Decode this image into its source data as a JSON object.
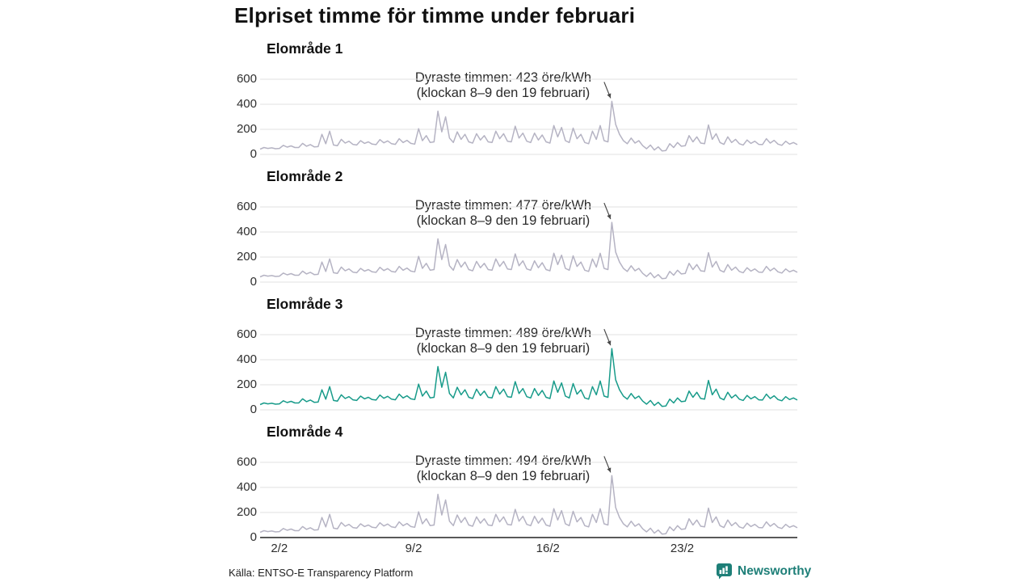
{
  "title": "Elpriset timme för timme under februari",
  "footer": {
    "source": "Källa: ENTSO-E Transparency Platform"
  },
  "logo": {
    "text": "Newsworthy",
    "color": "#1e7f78",
    "icon": "bar-chart-speech-bubble"
  },
  "colors": {
    "series_default": "#b5b3c3",
    "series_highlight": "#189b8a",
    "grid": "#e0e0e0",
    "axis": "#222222",
    "arrow": "#4a4a4a"
  },
  "axis": {
    "yticks": [
      600,
      400,
      200,
      0
    ],
    "xticks": [
      "2/2",
      "9/2",
      "16/2",
      "23/2"
    ],
    "xtick_days": [
      2,
      9,
      16,
      23
    ],
    "ylim": [
      0,
      700
    ],
    "x_domain": "1–28 februari, 5 samples per day"
  },
  "chart_data": [
    {
      "type": "line",
      "title": "Elområde 1",
      "unit": "öre/kWh",
      "line_color": "#b5b3c3",
      "annotation": {
        "line1": "Dyraste timmen: 423 öre/kWh",
        "line2": "(klockan 8–9 den 19 februari)",
        "max": 423
      },
      "values": [
        42,
        55,
        48,
        52,
        45,
        48,
        72,
        58,
        68,
        55,
        55,
        88,
        65,
        78,
        60,
        62,
        160,
        85,
        185,
        75,
        70,
        120,
        90,
        105,
        80,
        75,
        110,
        88,
        100,
        82,
        78,
        118,
        92,
        108,
        85,
        80,
        125,
        95,
        112,
        88,
        82,
        205,
        110,
        150,
        95,
        100,
        345,
        180,
        300,
        130,
        95,
        180,
        120,
        160,
        100,
        90,
        165,
        115,
        150,
        100,
        95,
        185,
        125,
        165,
        105,
        100,
        225,
        130,
        170,
        105,
        95,
        170,
        115,
        155,
        100,
        90,
        230,
        140,
        215,
        110,
        95,
        210,
        125,
        160,
        95,
        85,
        185,
        120,
        230,
        110,
        100,
        423,
        240,
        160,
        110,
        85,
        130,
        90,
        110,
        70,
        45,
        75,
        35,
        60,
        28,
        30,
        85,
        55,
        95,
        65,
        70,
        150,
        100,
        140,
        90,
        85,
        235,
        120,
        165,
        95,
        80,
        140,
        95,
        120,
        85,
        75,
        115,
        88,
        105,
        80,
        78,
        125,
        90,
        112,
        82,
        72,
        105,
        82,
        95,
        78
      ]
    },
    {
      "type": "line",
      "title": "Elområde 2",
      "unit": "öre/kWh",
      "line_color": "#b5b3c3",
      "annotation": {
        "line1": "Dyraste timmen: 477 öre/kWh",
        "line2": "(klockan 8–9 den 19 februari)",
        "max": 477
      },
      "values": [
        42,
        55,
        48,
        52,
        45,
        48,
        72,
        58,
        68,
        55,
        55,
        88,
        65,
        78,
        60,
        62,
        160,
        85,
        185,
        75,
        70,
        120,
        90,
        105,
        80,
        75,
        110,
        88,
        100,
        82,
        78,
        118,
        92,
        108,
        85,
        80,
        125,
        95,
        112,
        88,
        82,
        205,
        110,
        150,
        95,
        100,
        345,
        180,
        300,
        130,
        95,
        180,
        120,
        160,
        100,
        90,
        165,
        115,
        150,
        100,
        95,
        185,
        125,
        165,
        105,
        100,
        225,
        130,
        170,
        105,
        95,
        170,
        115,
        155,
        100,
        90,
        230,
        140,
        215,
        110,
        95,
        210,
        125,
        160,
        95,
        85,
        185,
        120,
        230,
        110,
        100,
        477,
        240,
        160,
        110,
        85,
        130,
        90,
        110,
        70,
        45,
        75,
        35,
        60,
        28,
        30,
        85,
        55,
        95,
        65,
        70,
        150,
        100,
        140,
        90,
        85,
        235,
        120,
        165,
        95,
        80,
        140,
        95,
        120,
        85,
        75,
        115,
        88,
        105,
        80,
        78,
        125,
        90,
        112,
        82,
        72,
        105,
        82,
        95,
        78
      ]
    },
    {
      "type": "line",
      "title": "Elområde 3",
      "unit": "öre/kWh",
      "line_color": "#189b8a",
      "annotation": {
        "line1": "Dyraste timmen: 489 öre/kWh",
        "line2": "(klockan 8–9 den 19 februari)",
        "max": 489
      },
      "values": [
        42,
        55,
        48,
        52,
        45,
        48,
        72,
        58,
        68,
        55,
        55,
        88,
        65,
        78,
        60,
        62,
        160,
        85,
        185,
        75,
        70,
        120,
        90,
        105,
        80,
        75,
        110,
        88,
        100,
        82,
        78,
        118,
        92,
        108,
        85,
        80,
        125,
        95,
        112,
        88,
        82,
        205,
        110,
        150,
        95,
        100,
        345,
        180,
        300,
        130,
        95,
        180,
        120,
        160,
        100,
        90,
        165,
        115,
        150,
        100,
        95,
        185,
        125,
        165,
        105,
        100,
        225,
        130,
        170,
        105,
        95,
        170,
        115,
        155,
        100,
        90,
        230,
        140,
        215,
        110,
        95,
        210,
        125,
        160,
        95,
        85,
        185,
        120,
        230,
        110,
        100,
        489,
        240,
        160,
        110,
        85,
        130,
        90,
        110,
        70,
        45,
        75,
        35,
        60,
        28,
        30,
        85,
        55,
        95,
        65,
        70,
        150,
        100,
        140,
        90,
        85,
        235,
        120,
        165,
        95,
        80,
        140,
        95,
        120,
        85,
        75,
        115,
        88,
        105,
        80,
        78,
        125,
        90,
        112,
        82,
        72,
        105,
        82,
        95,
        78
      ]
    },
    {
      "type": "line",
      "title": "Elområde 4",
      "unit": "öre/kWh",
      "line_color": "#b5b3c3",
      "annotation": {
        "line1": "Dyraste timmen: 494 öre/kWh",
        "line2": "(klockan 8–9 den 19 februari)",
        "max": 494
      },
      "values": [
        42,
        55,
        48,
        52,
        45,
        48,
        72,
        58,
        68,
        55,
        55,
        88,
        65,
        78,
        60,
        62,
        160,
        85,
        185,
        75,
        70,
        120,
        90,
        105,
        80,
        75,
        110,
        88,
        100,
        82,
        78,
        118,
        92,
        108,
        85,
        80,
        125,
        95,
        112,
        88,
        82,
        205,
        110,
        150,
        95,
        100,
        345,
        180,
        300,
        130,
        95,
        180,
        120,
        160,
        100,
        90,
        165,
        115,
        150,
        100,
        95,
        185,
        125,
        165,
        105,
        100,
        225,
        130,
        170,
        105,
        95,
        170,
        115,
        155,
        100,
        90,
        230,
        140,
        215,
        110,
        95,
        210,
        125,
        160,
        95,
        85,
        185,
        120,
        230,
        110,
        100,
        494,
        240,
        160,
        110,
        85,
        130,
        90,
        110,
        70,
        45,
        75,
        35,
        60,
        28,
        30,
        85,
        55,
        95,
        65,
        70,
        150,
        100,
        140,
        90,
        85,
        235,
        120,
        165,
        95,
        80,
        140,
        95,
        120,
        85,
        75,
        115,
        88,
        105,
        80,
        78,
        125,
        90,
        112,
        82,
        72,
        105,
        82,
        95,
        78
      ]
    }
  ]
}
